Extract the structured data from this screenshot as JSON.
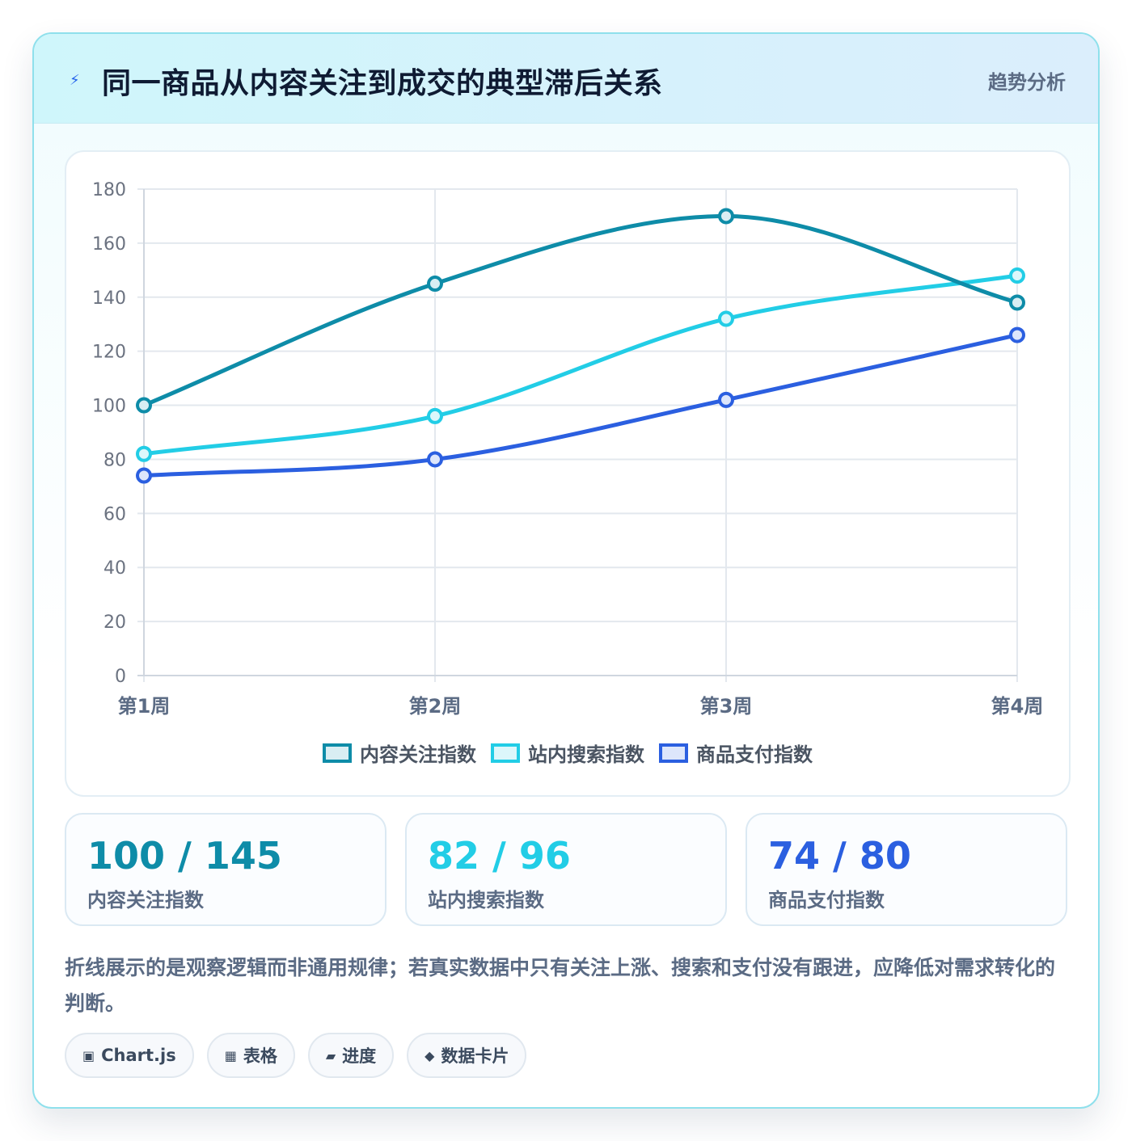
{
  "header": {
    "icon": "lightning-icon",
    "title": "同一商品从内容关注到成交的典型滞后关系",
    "tag": "趋势分析"
  },
  "chart_data": {
    "type": "line",
    "categories": [
      "第1周",
      "第2周",
      "第3周",
      "第4周"
    ],
    "series": [
      {
        "name": "内容关注指数",
        "values": [
          100,
          145,
          170,
          138
        ],
        "color": "#0e8ca8",
        "fill": "#d9eef3"
      },
      {
        "name": "站内搜索指数",
        "values": [
          82,
          96,
          132,
          148
        ],
        "color": "#22cde6",
        "fill": "#dcf7fb"
      },
      {
        "name": "商品支付指数",
        "values": [
          74,
          80,
          102,
          126
        ],
        "color": "#2b5fe0",
        "fill": "#dde6fb"
      }
    ],
    "ylim": [
      0,
      180
    ],
    "yticks": [
      "0",
      "20",
      "40",
      "60",
      "80",
      "100",
      "120",
      "140",
      "160",
      "180"
    ],
    "grid": true,
    "legend_position": "bottom",
    "smooth": true
  },
  "stats": [
    {
      "value": "100 / 145",
      "label": "内容关注指数",
      "color": "#0e8ca8"
    },
    {
      "value": "82 / 96",
      "label": "站内搜索指数",
      "color": "#22cde6"
    },
    {
      "value": "74 / 80",
      "label": "商品支付指数",
      "color": "#2b5fe0"
    }
  ],
  "note": "折线展示的是观察逻辑而非通用规律；若真实数据中只有关注上涨、搜索和支付没有跟进，应降低对需求转化的判断。",
  "chips": [
    {
      "icon": "chart-icon",
      "glyph": "▣",
      "label": "Chart.js"
    },
    {
      "icon": "table-icon",
      "glyph": "▦",
      "label": "表格"
    },
    {
      "icon": "progress-icon",
      "glyph": "▰",
      "label": "进度"
    },
    {
      "icon": "card-icon",
      "glyph": "◆",
      "label": "数据卡片"
    }
  ]
}
